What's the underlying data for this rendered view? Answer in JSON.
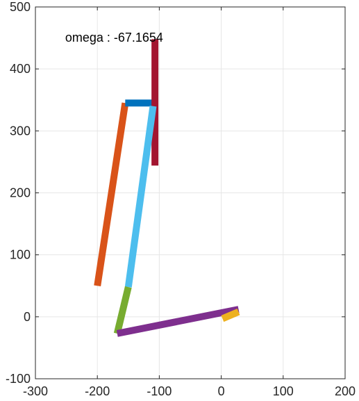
{
  "chart_data": {
    "type": "line",
    "title": "",
    "xlabel": "",
    "ylabel": "",
    "xlim": [
      -300,
      200
    ],
    "ylim": [
      -100,
      500
    ],
    "x_ticks": [
      -300,
      -200,
      -100,
      0,
      100,
      200
    ],
    "y_ticks": [
      -100,
      0,
      100,
      200,
      300,
      400,
      500
    ],
    "x_tick_labels": [
      "-300",
      "-200",
      "-100",
      "0",
      "100",
      "200"
    ],
    "y_tick_labels": [
      "-100",
      "0",
      "100",
      "200",
      "300",
      "400",
      "500"
    ],
    "grid": true,
    "annotation": {
      "text": "omega : -67.1654",
      "x": -252,
      "y": 444
    },
    "segments": [
      {
        "color": "#D95319",
        "x": [
          -200,
          -155
        ],
        "y": [
          50,
          345
        ]
      },
      {
        "color": "#0072BD",
        "x": [
          -155,
          -107
        ],
        "y": [
          345,
          345
        ]
      },
      {
        "color": "#A2142F",
        "x": [
          -107,
          -107
        ],
        "y": [
          448,
          244
        ]
      },
      {
        "color": "#4DBEEE",
        "x": [
          -150,
          -110
        ],
        "y": [
          48,
          340
        ]
      },
      {
        "color": "#77AC30",
        "x": [
          -150,
          -168
        ],
        "y": [
          48,
          -27
        ]
      },
      {
        "color": "#7E2F8E",
        "x": [
          -168,
          28
        ],
        "y": [
          -27,
          12
        ]
      },
      {
        "color": "#EDB120",
        "x": [
          2,
          28
        ],
        "y": [
          -3,
          8
        ]
      }
    ]
  }
}
